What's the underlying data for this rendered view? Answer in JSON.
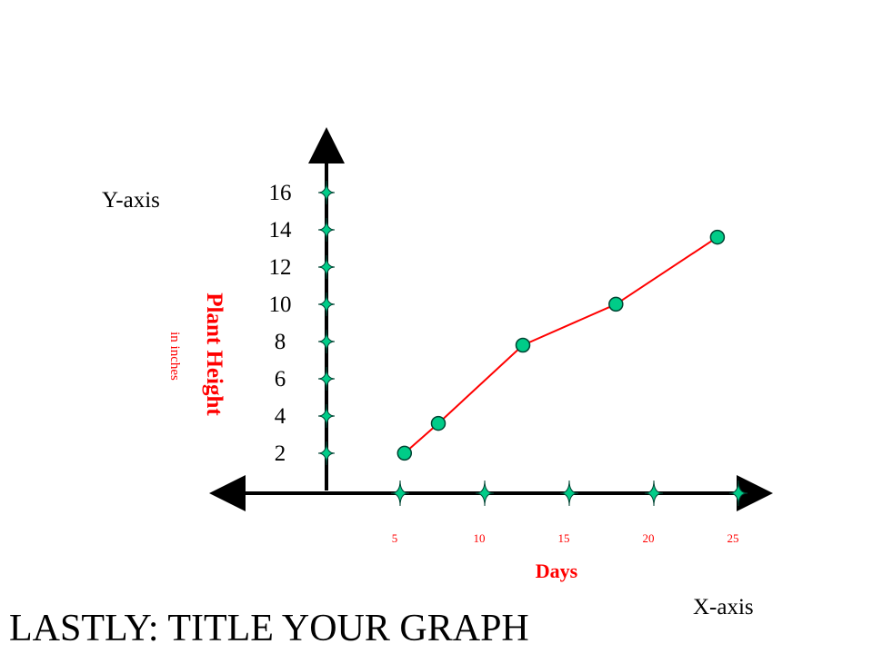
{
  "labels": {
    "y_axis_word": "Y-axis",
    "x_axis_word": "X-axis",
    "y_title": "Plant Height",
    "y_unit": "in inches",
    "x_title": "Days",
    "footer": "LASTLY: TITLE YOUR GRAPH"
  },
  "colors": {
    "axis": "#000000",
    "accent_red": "#ff0000",
    "marker_fill": "#00cc88",
    "marker_stroke": "#004433",
    "line": "#ff0000"
  },
  "chart_data": {
    "type": "line",
    "title": "",
    "xlabel": "Days",
    "ylabel": "Plant Height",
    "y_unit": "in inches",
    "x_ticks": [
      5,
      10,
      15,
      20,
      25
    ],
    "y_ticks": [
      2,
      4,
      6,
      8,
      10,
      12,
      14,
      16
    ],
    "xlim": [
      0,
      25
    ],
    "ylim": [
      0,
      16
    ],
    "grid": false,
    "series": [
      {
        "points": [
          {
            "x": 3,
            "y": 2.2
          },
          {
            "x": 5,
            "y": 3.8
          },
          {
            "x": 10,
            "y": 8.0
          },
          {
            "x": 15.5,
            "y": 10.2
          },
          {
            "x": 21.5,
            "y": 13.8
          }
        ]
      }
    ]
  }
}
